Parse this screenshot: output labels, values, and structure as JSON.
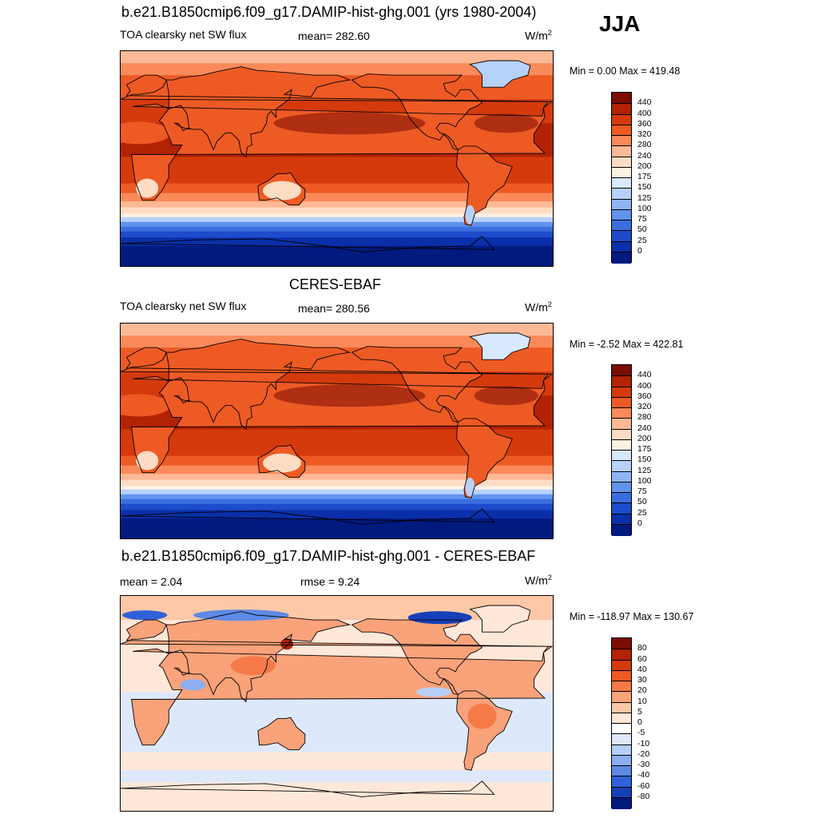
{
  "season": "JJA",
  "panels": [
    {
      "title": "b.e21.B1850cmip6.f09_g17.DAMIP-hist-ghg.001 (yrs 1980-2004)",
      "left_label": "TOA clearsky net SW flux",
      "center_label": "mean= 282.60",
      "units_base": "W/m",
      "units_exp": "2",
      "minmax": "Min =   0.00 Max = 419.48"
    },
    {
      "title": "CERES-EBAF",
      "left_label": "TOA clearsky net SW flux",
      "center_label": "mean= 280.56",
      "units_base": "W/m",
      "units_exp": "2",
      "minmax": "Min =  -2.52 Max = 422.81"
    },
    {
      "title": "b.e21.B1850cmip6.f09_g17.DAMIP-hist-ghg.001 - CERES-EBAF",
      "left_label": "mean =   2.04",
      "center_label": "rmse =   9.24",
      "units_base": "W/m",
      "units_exp": "2",
      "minmax": "Min = -118.97 Max = 130.67"
    }
  ],
  "chart_data": [
    {
      "type": "heatmap",
      "title": "b.e21.B1850cmip6.f09_g17.DAMIP-hist-ghg.001 (yrs 1980-2004)",
      "variable": "TOA clearsky net SW flux",
      "mean": 282.6,
      "min": 0.0,
      "max": 419.48,
      "units": "W/m2",
      "colorbar_levels": [
        440,
        400,
        360,
        320,
        280,
        240,
        200,
        175,
        150,
        125,
        100,
        75,
        50,
        25,
        0
      ],
      "colors": [
        "#7a0d04",
        "#b22203",
        "#d43a0c",
        "#ee5a24",
        "#fa8a5a",
        "#fdb996",
        "#fedcc4",
        "#fff0e4",
        "#d8e9ff",
        "#b6d2fb",
        "#8fb5f5",
        "#6294ec",
        "#3a6edf",
        "#1c4ccc",
        "#0a2fa8",
        "#001a80"
      ]
    },
    {
      "type": "heatmap",
      "title": "CERES-EBAF",
      "variable": "TOA clearsky net SW flux",
      "mean": 280.56,
      "min": -2.52,
      "max": 422.81,
      "units": "W/m2",
      "colorbar_levels": [
        440,
        400,
        360,
        320,
        280,
        240,
        200,
        175,
        150,
        125,
        100,
        75,
        50,
        25,
        0
      ],
      "colors": [
        "#7a0d04",
        "#b22203",
        "#d43a0c",
        "#ee5a24",
        "#fa8a5a",
        "#fdb996",
        "#fedcc4",
        "#fff0e4",
        "#d8e9ff",
        "#b6d2fb",
        "#8fb5f5",
        "#6294ec",
        "#3a6edf",
        "#1c4ccc",
        "#0a2fa8",
        "#001a80"
      ]
    },
    {
      "type": "heatmap",
      "title": "b.e21.B1850cmip6.f09_g17.DAMIP-hist-ghg.001 - CERES-EBAF",
      "mean": 2.04,
      "rmse": 9.24,
      "min": -118.97,
      "max": 130.67,
      "units": "W/m2",
      "colorbar_levels": [
        80,
        60,
        40,
        30,
        20,
        10,
        5,
        0,
        -5,
        -10,
        -20,
        -30,
        -40,
        -60,
        -80
      ],
      "colors": [
        "#7a0d04",
        "#b22203",
        "#d43a0c",
        "#ee5a24",
        "#f67a48",
        "#faa27a",
        "#fdc8a8",
        "#ffe8d8",
        "#ffffff",
        "#dde9fb",
        "#b6cff7",
        "#8caff0",
        "#5e8ae6",
        "#2f62d8",
        "#1540b8",
        "#001a80"
      ]
    }
  ]
}
